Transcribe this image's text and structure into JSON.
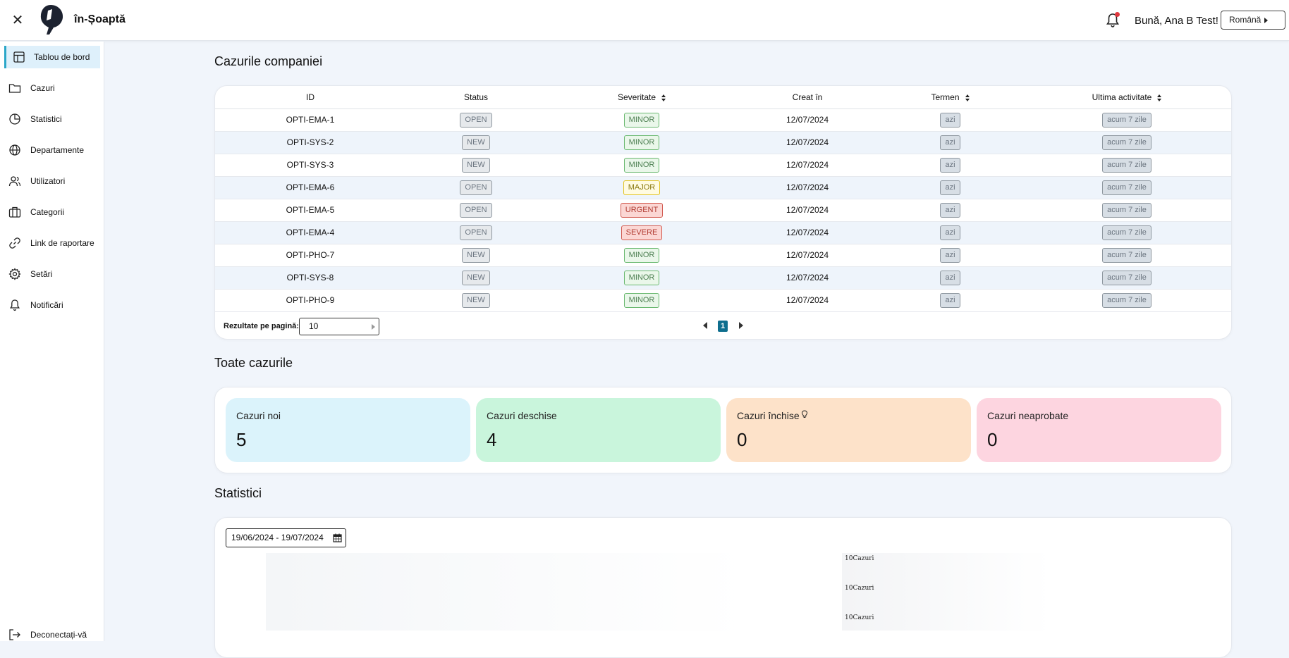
{
  "app": {
    "brand": "în-Șoaptă",
    "greeting": "Bună, Ana B Test!",
    "language": "Română"
  },
  "sidebar": {
    "items": [
      {
        "label": "Tablou de bord",
        "icon": "dashboard-icon",
        "active": true
      },
      {
        "label": "Cazuri",
        "icon": "folder-icon"
      },
      {
        "label": "Statistici",
        "icon": "pie-chart-icon"
      },
      {
        "label": "Departamente",
        "icon": "globe-icon"
      },
      {
        "label": "Utilizatori",
        "icon": "users-icon"
      },
      {
        "label": "Categorii",
        "icon": "briefcase-icon"
      },
      {
        "label": "Link de raportare",
        "icon": "link-icon"
      },
      {
        "label": "Setări",
        "icon": "gear-icon"
      },
      {
        "label": "Notificări",
        "icon": "bell-icon"
      }
    ],
    "logout": "Deconectați-vă"
  },
  "company_cases": {
    "title": "Cazurile companiei",
    "columns": {
      "id": "ID",
      "status": "Status",
      "severity": "Severitate",
      "created": "Creat în",
      "deadline": "Termen",
      "last_activity": "Ultima activitate"
    },
    "rows": [
      {
        "id": "OPTI-EMA-1",
        "status": "OPEN",
        "severity": "MINOR",
        "created": "12/07/2024",
        "deadline": "azi",
        "last": "acum 7 zile"
      },
      {
        "id": "OPTI-SYS-2",
        "status": "NEW",
        "severity": "MINOR",
        "created": "12/07/2024",
        "deadline": "azi",
        "last": "acum 7 zile"
      },
      {
        "id": "OPTI-SYS-3",
        "status": "NEW",
        "severity": "MINOR",
        "created": "12/07/2024",
        "deadline": "azi",
        "last": "acum 7 zile"
      },
      {
        "id": "OPTI-EMA-6",
        "status": "OPEN",
        "severity": "MAJOR",
        "created": "12/07/2024",
        "deadline": "azi",
        "last": "acum 7 zile"
      },
      {
        "id": "OPTI-EMA-5",
        "status": "OPEN",
        "severity": "URGENT",
        "created": "12/07/2024",
        "deadline": "azi",
        "last": "acum 7 zile"
      },
      {
        "id": "OPTI-EMA-4",
        "status": "OPEN",
        "severity": "SEVERE",
        "created": "12/07/2024",
        "deadline": "azi",
        "last": "acum 7 zile"
      },
      {
        "id": "OPTI-PHO-7",
        "status": "NEW",
        "severity": "MINOR",
        "created": "12/07/2024",
        "deadline": "azi",
        "last": "acum 7 zile"
      },
      {
        "id": "OPTI-SYS-8",
        "status": "NEW",
        "severity": "MINOR",
        "created": "12/07/2024",
        "deadline": "azi",
        "last": "acum 7 zile"
      },
      {
        "id": "OPTI-PHO-9",
        "status": "NEW",
        "severity": "MINOR",
        "created": "12/07/2024",
        "deadline": "azi",
        "last": "acum 7 zile"
      }
    ],
    "per_page_label": "Rezultate pe pagină:",
    "per_page_value": "10",
    "current_page": "1"
  },
  "all_cases": {
    "title": "Toate cazurile",
    "cards": [
      {
        "label": "Cazuri noi",
        "value": "5",
        "color": "#dbf3fb"
      },
      {
        "label": "Cazuri deschise",
        "value": "4",
        "color": "#c9f5dc"
      },
      {
        "label": "Cazuri închise",
        "value": "0",
        "color": "#fde2c9",
        "hint_icon": "lightbulb-icon"
      },
      {
        "label": "Cazuri neaprobate",
        "value": "0",
        "color": "#fdd5e0"
      }
    ]
  },
  "statistics": {
    "title": "Statistici",
    "date_range": "19/06/2024 - 19/07/2024",
    "chart_labels": [
      "10Cazuri",
      "10Cazuri",
      "10Cazuri"
    ]
  },
  "colors": {
    "accent": "#0e6e8e",
    "active_nav": "#def0fb",
    "active_border": "#2ba7c8",
    "notification_dot": "#e0383e"
  }
}
